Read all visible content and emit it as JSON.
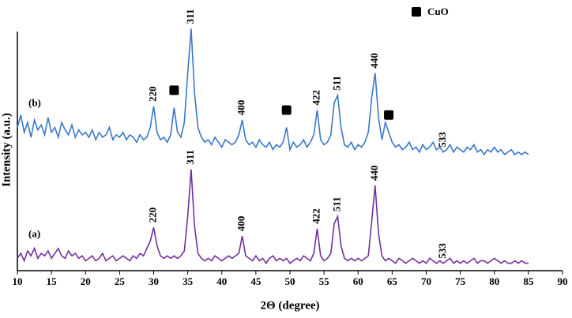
{
  "chart_data": {
    "type": "line",
    "xlabel": "2Θ (degree)",
    "ylabel": "Intensity (a.u.)",
    "xlim": [
      10,
      90
    ],
    "xticks": [
      10,
      15,
      20,
      25,
      30,
      35,
      40,
      45,
      50,
      55,
      60,
      65,
      70,
      75,
      80,
      85,
      90
    ],
    "ylim": [
      0,
      100
    ],
    "x": [
      10,
      10.5,
      11,
      11.5,
      12,
      12.5,
      13,
      13.5,
      14,
      14.5,
      15,
      15.5,
      16,
      16.5,
      17,
      17.5,
      18,
      18.5,
      19,
      19.5,
      20,
      20.5,
      21,
      21.5,
      22,
      22.5,
      23,
      23.5,
      24,
      24.5,
      25,
      25.5,
      26,
      26.5,
      27,
      27.5,
      28,
      28.5,
      29,
      29.5,
      30,
      30.5,
      31,
      31.5,
      32,
      32.5,
      33,
      33.5,
      34,
      34.5,
      35,
      35.5,
      36,
      36.5,
      37,
      37.5,
      38,
      38.5,
      39,
      39.5,
      40,
      40.5,
      41,
      41.5,
      42,
      42.5,
      43,
      43.5,
      44,
      44.5,
      45,
      45.5,
      46,
      46.5,
      47,
      47.5,
      48,
      48.5,
      49,
      49.5,
      50,
      50.5,
      51,
      51.5,
      52,
      52.5,
      53,
      53.5,
      54,
      54.5,
      55,
      55.5,
      56,
      56.5,
      57,
      57.5,
      58,
      58.5,
      59,
      59.5,
      60,
      60.5,
      61,
      61.5,
      62,
      62.5,
      63,
      63.5,
      64,
      64.5,
      65,
      65.5,
      66,
      66.5,
      67,
      67.5,
      68,
      68.5,
      69,
      69.5,
      70,
      70.5,
      71,
      71.5,
      72,
      72.5,
      73,
      73.5,
      74,
      74.5,
      75,
      75.5,
      76,
      76.5,
      77,
      77.5,
      78,
      78.5,
      79,
      79.5,
      80,
      80.5,
      81,
      81.5,
      82,
      82.5,
      83,
      83.5,
      84,
      84.5,
      85
    ],
    "series": [
      {
        "name": "(a)",
        "color": "#7030a0",
        "values": [
          5,
          7,
          4,
          8,
          6,
          9,
          5,
          7,
          6,
          8,
          5,
          7,
          9,
          6,
          5,
          8,
          6,
          7,
          5,
          6,
          4,
          5,
          6,
          4,
          5,
          7,
          4,
          5,
          6,
          4,
          5,
          6,
          5,
          4,
          6,
          5,
          7,
          6,
          9,
          12,
          17.5,
          10,
          6,
          5,
          6,
          5,
          6,
          5,
          6,
          8,
          22,
          41,
          18,
          7,
          5,
          4,
          5,
          4,
          6,
          5,
          4,
          5,
          6,
          5,
          6,
          7,
          14,
          6,
          5,
          4,
          6,
          4,
          5,
          3,
          5,
          6,
          4,
          5,
          4,
          5,
          3,
          4,
          5,
          4,
          6,
          5,
          4,
          7,
          17,
          6,
          4,
          5,
          7,
          19,
          22,
          10,
          5,
          4,
          5,
          4,
          5,
          4,
          5,
          6,
          20,
          34.5,
          15,
          6,
          4,
          5,
          4,
          3,
          5,
          4,
          3,
          4,
          5,
          4,
          3,
          4,
          3,
          5,
          4,
          3,
          4,
          3,
          4,
          5,
          3,
          4,
          3,
          4,
          3,
          4,
          5,
          3,
          4,
          4,
          3,
          4,
          5,
          4,
          3,
          4,
          3,
          3,
          4,
          3,
          4,
          3,
          3
        ]
      },
      {
        "name": "(b)",
        "color": "#3a78c9",
        "values": [
          58,
          63,
          56,
          60,
          54,
          61,
          57,
          59,
          55,
          62,
          56,
          58,
          54,
          60,
          57,
          55,
          59,
          54,
          57,
          55,
          56,
          54,
          57,
          53,
          56,
          54,
          55,
          58,
          53,
          55,
          54,
          56,
          53,
          55,
          54,
          52,
          55,
          53,
          54,
          58,
          66.5,
          56,
          53,
          54,
          52,
          55,
          66,
          56,
          54,
          60,
          80,
          98,
          72,
          58,
          54,
          52,
          53,
          51,
          54,
          52,
          50,
          53,
          52,
          51,
          52,
          55,
          61,
          53,
          51,
          52,
          50,
          53,
          51,
          50,
          52,
          49,
          51,
          50,
          52,
          58,
          49,
          52,
          50,
          51,
          53,
          50,
          52,
          55,
          65,
          53,
          51,
          52,
          55,
          68,
          71,
          58,
          51,
          50,
          52,
          49,
          51,
          50,
          52,
          56,
          70,
          80,
          62,
          53,
          60,
          56,
          52,
          50,
          51,
          49,
          50,
          52,
          49,
          50,
          48,
          51,
          49,
          50,
          52,
          49,
          50,
          48,
          49,
          51,
          48,
          50,
          49,
          48,
          50,
          49,
          51,
          48,
          49,
          47,
          49,
          48,
          50,
          48,
          49,
          47,
          48,
          49,
          47,
          48,
          47,
          48,
          47
        ]
      }
    ],
    "annotations": [
      {
        "text": "220",
        "x": 30,
        "series": 0
      },
      {
        "text": "311",
        "x": 35.5,
        "series": 0
      },
      {
        "text": "400",
        "x": 43,
        "series": 0
      },
      {
        "text": "422",
        "x": 54,
        "series": 0
      },
      {
        "text": "511",
        "x": 57,
        "series": 0
      },
      {
        "text": "440",
        "x": 62.5,
        "series": 0
      },
      {
        "text": "533",
        "x": 72.5,
        "series": 0
      },
      {
        "text": "220",
        "x": 30,
        "series": 1
      },
      {
        "text": "311",
        "x": 35.5,
        "series": 1
      },
      {
        "text": "400",
        "x": 43,
        "series": 1
      },
      {
        "text": "422",
        "x": 54,
        "series": 1
      },
      {
        "text": "511",
        "x": 57,
        "series": 1
      },
      {
        "text": "440",
        "x": 62.5,
        "series": 1
      },
      {
        "text": "533",
        "x": 72.5,
        "series": 1
      }
    ],
    "markers": {
      "name": "CuO",
      "x": [
        33,
        49.5,
        64.5
      ],
      "series": 1
    }
  }
}
